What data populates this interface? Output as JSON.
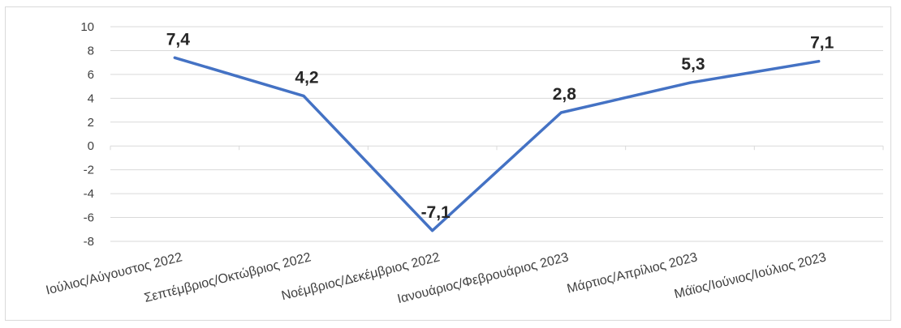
{
  "chart_data": {
    "type": "line",
    "title": "",
    "xlabel": "",
    "ylabel": "",
    "categories": [
      "Ιούλιος/Αύγουστος 2022",
      "Σεπτέμβριος/Οκτώβριος 2022",
      "Νοέμβριος/Δεκέμβριος 2022",
      "Ιανουάριος/Φεβρουάριος 2023",
      "Μάρτιος/Απρίλιος 2023",
      "Μάϊος/Ιούνιος/Ιούλιος 2023"
    ],
    "series": [
      {
        "values": [
          7.4,
          4.2,
          -7.1,
          2.8,
          5.3,
          7.1
        ],
        "labels": [
          "7,4",
          "4,2",
          "-7,1",
          "2,8",
          "5,3",
          "7,1"
        ]
      }
    ],
    "ylim": [
      -8,
      10
    ],
    "yticks": [
      "10",
      "8",
      "6",
      "4",
      "2",
      "0",
      "-2",
      "-4",
      "-6",
      "-8"
    ],
    "ytick_values": [
      10,
      8,
      6,
      4,
      2,
      0,
      -2,
      -4,
      -6,
      -8
    ],
    "grid": true,
    "legend": "none",
    "line_color": "#4472c4",
    "grid_color": "#d9d9d9"
  }
}
